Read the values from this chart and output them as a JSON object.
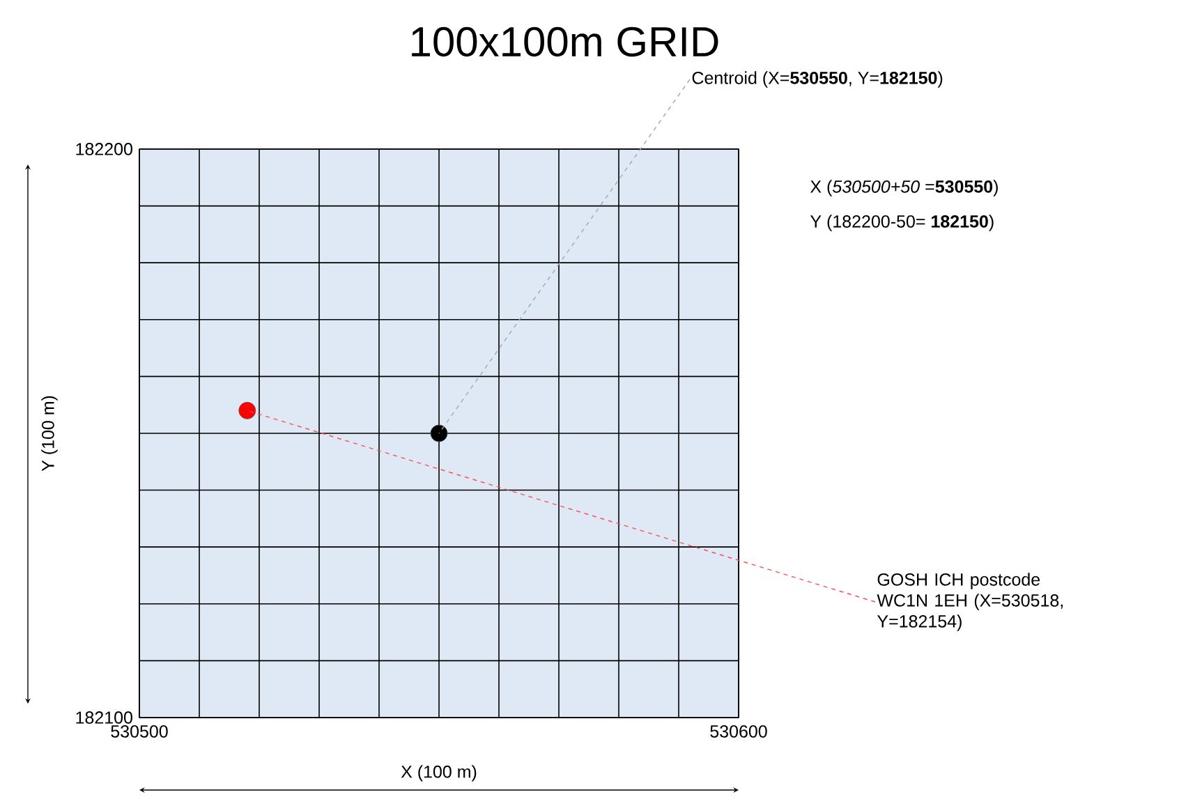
{
  "chart_data": {
    "type": "scatter",
    "title": "100x100m GRID",
    "xlabel": "X (100 m)",
    "ylabel": "Y (100 m)",
    "xlim": [
      530500,
      530600
    ],
    "ylim": [
      182100,
      182200
    ],
    "xticks": [
      530500,
      {
        "value": 530510,
        "label": null
      },
      {
        "value": 530520,
        "label": null
      },
      {
        "value": 530530,
        "label": null
      },
      {
        "value": 530540,
        "label": null
      },
      {
        "value": 530550,
        "label": null
      },
      {
        "value": 530560,
        "label": null
      },
      {
        "value": 530570,
        "label": null
      },
      {
        "value": 530580,
        "label": null
      },
      {
        "value": 530590,
        "label": null
      },
      530600
    ],
    "yticks": [
      182100,
      {
        "value": 182110,
        "label": null
      },
      {
        "value": 182120,
        "label": null
      },
      {
        "value": 182130,
        "label": null
      },
      {
        "value": 182140,
        "label": null
      },
      {
        "value": 182150,
        "label": null
      },
      {
        "value": 182160,
        "label": null
      },
      {
        "value": 182170,
        "label": null
      },
      {
        "value": 182180,
        "label": null
      },
      {
        "value": 182190,
        "label": null
      },
      182200
    ],
    "grid": true,
    "marker": "circle",
    "series": [
      {
        "x": [
          530550
        ],
        "values": [
          182150
        ],
        "color": "#000000"
      },
      {
        "x": [
          530518
        ],
        "values": [
          182154
        ],
        "color": "#ff0000"
      }
    ],
    "annotations": [
      {
        "text": "Centroid  (X=**530550**, Y=**182150**)",
        "x": 530550,
        "y": 182150
      },
      "X (*530500+50* =**530550**)",
      "Y (182200-50= **182150**)",
      {
        "text": "GOSH ICH postcode WC1N 1EH (X=530518, Y=182154)",
        "x": 530518,
        "y": 182154
      }
    ]
  }
}
